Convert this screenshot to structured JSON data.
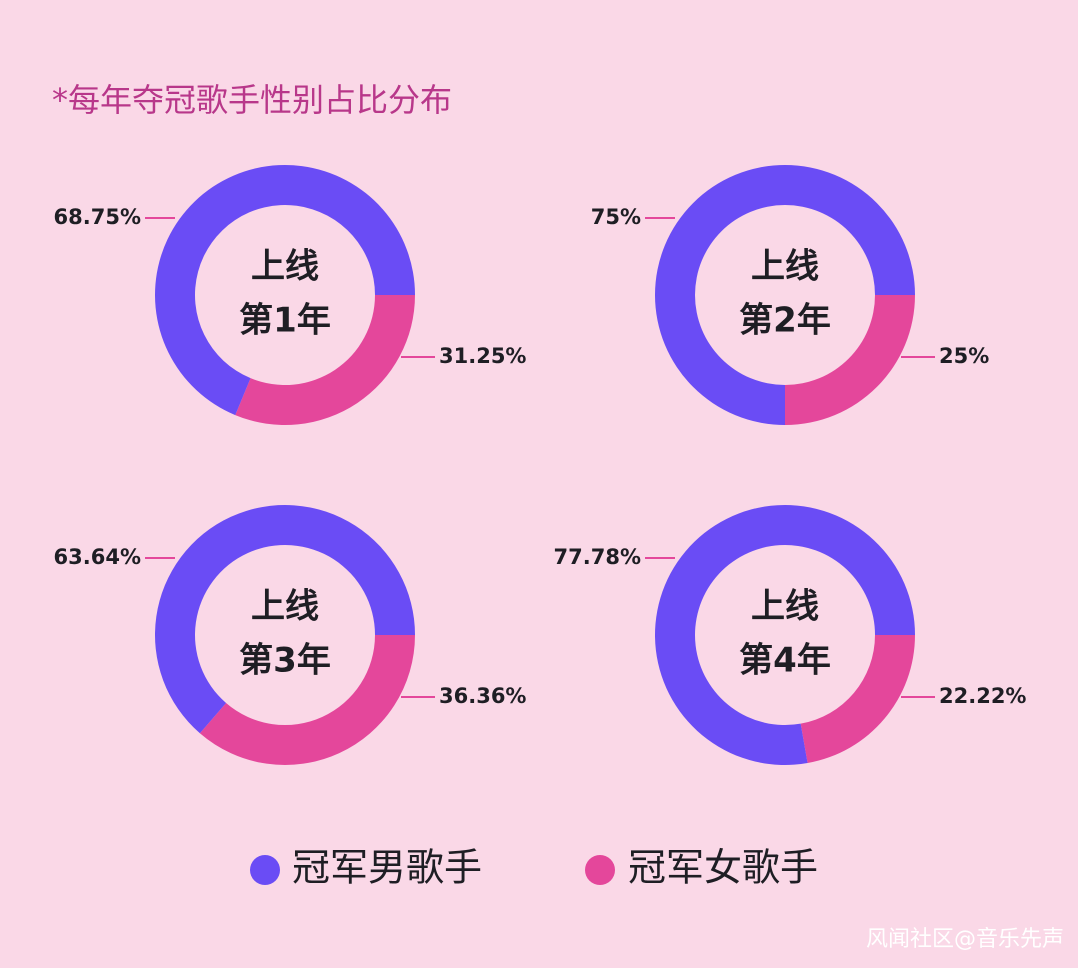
{
  "subtitle": "*每年夺冠歌手性别占比分布",
  "legend": {
    "labels": [
      "冠军男歌手",
      "冠军女歌手"
    ],
    "colors": [
      "#6a4cf5",
      "#e4479b"
    ]
  },
  "watermark": "风闻社区@音乐先声",
  "chart_data": [
    {
      "type": "donut",
      "center_text": [
        "上线",
        "第1年"
      ],
      "values": [
        68.75,
        31.25
      ],
      "value_labels": [
        "68.75%",
        "31.25%"
      ]
    },
    {
      "type": "donut",
      "center_text": [
        "上线",
        "第2年"
      ],
      "values": [
        75,
        25
      ],
      "value_labels": [
        "75%",
        "25%"
      ]
    },
    {
      "type": "donut",
      "center_text": [
        "上线",
        "第3年"
      ],
      "values": [
        63.64,
        36.36
      ],
      "value_labels": [
        "63.64%",
        "36.36%"
      ]
    },
    {
      "type": "donut",
      "center_text": [
        "上线",
        "第4年"
      ],
      "values": [
        77.78,
        22.22
      ],
      "value_labels": [
        "77.78%",
        "22.22%"
      ]
    }
  ]
}
